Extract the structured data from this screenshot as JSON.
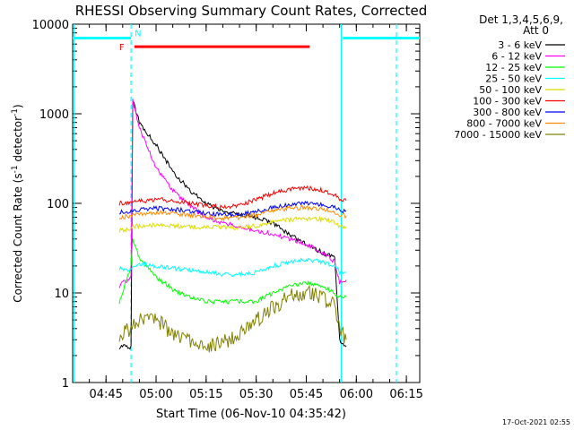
{
  "chart_data": {
    "type": "line",
    "title": "RHESSI Observing Summary Count Rates, Corrected",
    "xlabel": "Start Time (06-Nov-10 04:35:42)",
    "ylabel": "Corrected Count Rate (s-1 detector-1)",
    "ylabel_parts": {
      "main": "Corrected Count Rate (s",
      "sup1": "-1",
      "mid": " detector",
      "sup2": "-1",
      "end": ")"
    },
    "ylog": true,
    "ylim": [
      1,
      10000
    ],
    "xlim_minutes_after_0435": [
      0,
      104
    ],
    "ytick_labels": [
      "1",
      "10",
      "100",
      "1000",
      "10000"
    ],
    "xticks": [
      {
        "label": "04:45",
        "m": 10
      },
      {
        "label": "05:00",
        "m": 25
      },
      {
        "label": "05:15",
        "m": 40
      },
      {
        "label": "05:30",
        "m": 55
      },
      {
        "label": "05:45",
        "m": 70
      },
      {
        "label": "06:00",
        "m": 85
      },
      {
        "label": "06:15",
        "m": 100
      }
    ],
    "legend_header": [
      "Det 1,3,4,5,6,9,",
      "Att 0"
    ],
    "legend_placement": "right, outside plot",
    "series": [
      {
        "name": "3 - 6 keV",
        "color": "#000000",
        "points": [
          [
            14,
            2.5
          ],
          [
            17.5,
            2.5
          ],
          [
            18,
            1400
          ],
          [
            20,
            800
          ],
          [
            25,
            450
          ],
          [
            30,
            230
          ],
          [
            35,
            140
          ],
          [
            40,
            100
          ],
          [
            45,
            80
          ],
          [
            50,
            75
          ],
          [
            55,
            70
          ],
          [
            60,
            60
          ],
          [
            65,
            45
          ],
          [
            70,
            35
          ],
          [
            75,
            28
          ],
          [
            78.5,
            25
          ],
          [
            80,
            3
          ],
          [
            82,
            2.5
          ]
        ]
      },
      {
        "name": "6 - 12 keV",
        "color": "#ff00ff",
        "points": [
          [
            14,
            12
          ],
          [
            17.5,
            15
          ],
          [
            18,
            1400
          ],
          [
            20,
            700
          ],
          [
            25,
            250
          ],
          [
            30,
            140
          ],
          [
            35,
            95
          ],
          [
            40,
            70
          ],
          [
            45,
            60
          ],
          [
            50,
            55
          ],
          [
            55,
            50
          ],
          [
            60,
            45
          ],
          [
            65,
            40
          ],
          [
            70,
            35
          ],
          [
            75,
            28
          ],
          [
            78.5,
            22
          ],
          [
            80,
            13
          ],
          [
            82,
            14
          ]
        ]
      },
      {
        "name": "12 - 25 keV",
        "color": "#00ff00",
        "points": [
          [
            14,
            8
          ],
          [
            17.5,
            20
          ],
          [
            18,
            40
          ],
          [
            20,
            25
          ],
          [
            25,
            15
          ],
          [
            30,
            11
          ],
          [
            35,
            9
          ],
          [
            40,
            8
          ],
          [
            45,
            8
          ],
          [
            50,
            8
          ],
          [
            55,
            8
          ],
          [
            60,
            10
          ],
          [
            65,
            12
          ],
          [
            70,
            13
          ],
          [
            75,
            12
          ],
          [
            78.5,
            10
          ],
          [
            80,
            9
          ],
          [
            82,
            9
          ]
        ]
      },
      {
        "name": "25 - 50 keV",
        "color": "#00ffff",
        "points": [
          [
            14,
            19
          ],
          [
            17.5,
            18
          ],
          [
            18,
            20
          ],
          [
            20,
            21
          ],
          [
            25,
            20
          ],
          [
            30,
            19
          ],
          [
            35,
            18
          ],
          [
            40,
            17
          ],
          [
            45,
            16
          ],
          [
            50,
            16
          ],
          [
            55,
            17
          ],
          [
            60,
            20
          ],
          [
            65,
            22
          ],
          [
            70,
            24
          ],
          [
            75,
            22
          ],
          [
            78.5,
            20
          ],
          [
            80,
            17
          ],
          [
            82,
            17
          ]
        ]
      },
      {
        "name": "50 - 100 keV",
        "color": "#dcdc00",
        "points": [
          [
            14,
            50
          ],
          [
            17.5,
            52
          ],
          [
            18,
            55
          ],
          [
            20,
            56
          ],
          [
            25,
            57
          ],
          [
            30,
            56
          ],
          [
            35,
            55
          ],
          [
            40,
            54
          ],
          [
            45,
            54
          ],
          [
            50,
            54
          ],
          [
            55,
            56
          ],
          [
            60,
            62
          ],
          [
            65,
            66
          ],
          [
            70,
            68
          ],
          [
            75,
            66
          ],
          [
            78.5,
            62
          ],
          [
            80,
            55
          ],
          [
            82,
            55
          ]
        ]
      },
      {
        "name": "100 - 300 keV",
        "color": "#ff0000",
        "points": [
          [
            14,
            100
          ],
          [
            17.5,
            102
          ],
          [
            18,
            103
          ],
          [
            20,
            105
          ],
          [
            25,
            110
          ],
          [
            30,
            108
          ],
          [
            35,
            100
          ],
          [
            40,
            95
          ],
          [
            45,
            90
          ],
          [
            50,
            95
          ],
          [
            55,
            110
          ],
          [
            60,
            130
          ],
          [
            65,
            145
          ],
          [
            70,
            148
          ],
          [
            75,
            140
          ],
          [
            78.5,
            125
          ],
          [
            80,
            112
          ],
          [
            82,
            108
          ]
        ]
      },
      {
        "name": "300 - 800 keV",
        "color": "#0000ff",
        "points": [
          [
            14,
            80
          ],
          [
            17.5,
            82
          ],
          [
            18,
            83
          ],
          [
            20,
            85
          ],
          [
            25,
            88
          ],
          [
            30,
            86
          ],
          [
            35,
            82
          ],
          [
            40,
            78
          ],
          [
            45,
            75
          ],
          [
            50,
            75
          ],
          [
            55,
            80
          ],
          [
            60,
            90
          ],
          [
            65,
            97
          ],
          [
            70,
            100
          ],
          [
            75,
            96
          ],
          [
            78.5,
            90
          ],
          [
            80,
            83
          ],
          [
            82,
            82
          ]
        ]
      },
      {
        "name": "800 - 7000 keV",
        "color": "#ff8c00",
        "points": [
          [
            14,
            70
          ],
          [
            17.5,
            72
          ],
          [
            18,
            73
          ],
          [
            20,
            76
          ],
          [
            25,
            78
          ],
          [
            30,
            77
          ],
          [
            35,
            74
          ],
          [
            40,
            71
          ],
          [
            45,
            68
          ],
          [
            50,
            70
          ],
          [
            55,
            75
          ],
          [
            60,
            82
          ],
          [
            65,
            88
          ],
          [
            70,
            90
          ],
          [
            75,
            87
          ],
          [
            78.5,
            80
          ],
          [
            80,
            74
          ],
          [
            82,
            72
          ]
        ]
      },
      {
        "name": "7000 - 15000 keV",
        "color": "#808000",
        "points": [
          [
            14,
            3.5
          ],
          [
            17.5,
            4
          ],
          [
            18,
            4.2
          ],
          [
            20,
            5
          ],
          [
            25,
            5
          ],
          [
            30,
            3.5
          ],
          [
            35,
            3
          ],
          [
            40,
            2.5
          ],
          [
            45,
            2.8
          ],
          [
            50,
            3.5
          ],
          [
            55,
            5
          ],
          [
            60,
            7
          ],
          [
            65,
            9
          ],
          [
            70,
            10
          ],
          [
            75,
            9
          ],
          [
            78.5,
            7
          ],
          [
            80,
            4
          ],
          [
            82,
            3
          ]
        ]
      }
    ],
    "annotations": [
      {
        "text": "F",
        "color": "#ff0000"
      },
      {
        "text": "N",
        "color": "#00ffff"
      }
    ],
    "flare_bar": {
      "color": "#ff0000",
      "x_start": 18.5,
      "x_end": 71
    },
    "night_markers": {
      "color": "#00ffff",
      "y": 7000,
      "segments": [
        [
          0,
          17.5
        ],
        [
          81,
          104
        ]
      ]
    },
    "vertical_lines": [
      {
        "x": 0.5,
        "style": "solid",
        "color": "#00ffff"
      },
      {
        "x": 17.5,
        "style": "dashed",
        "color": "#00ffff"
      },
      {
        "x": 80.5,
        "style": "solid",
        "color": "#00ffff"
      },
      {
        "x": 97,
        "style": "dashed",
        "color": "#00ffff"
      }
    ]
  },
  "footer": {
    "timestamp": "17-Oct-2021 02:55"
  }
}
